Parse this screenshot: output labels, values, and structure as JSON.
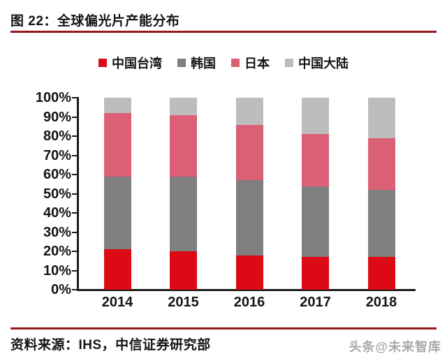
{
  "page": {
    "title": "图 22：全球偏光片产能分布",
    "source": "资料来源：IHS，中信证券研究部",
    "watermark": "头条@未来智库"
  },
  "colors": {
    "accent_rule": "#97181B",
    "axis": "#1A1A1A",
    "series_taiwan": "#DC0A14",
    "series_korea": "#7F7F7F",
    "series_japan": "#DC6075",
    "series_mainland": "#BDBDBD"
  },
  "chart_data": {
    "type": "bar",
    "stacked": true,
    "title": "全球偏光片产能分布",
    "categories": [
      "2014",
      "2015",
      "2016",
      "2017",
      "2018"
    ],
    "series": [
      {
        "name": "中国台湾",
        "color": "#DC0A14",
        "values": [
          21,
          20,
          18,
          17,
          17
        ]
      },
      {
        "name": "韩国",
        "color": "#7F7F7F",
        "values": [
          38,
          39,
          39,
          37,
          35
        ]
      },
      {
        "name": "日本",
        "color": "#DC6075",
        "values": [
          33,
          32,
          29,
          27,
          27
        ]
      },
      {
        "name": "中国大陆",
        "color": "#BDBDBD",
        "values": [
          8,
          9,
          14,
          19,
          21
        ]
      }
    ],
    "xlabel": "",
    "ylabel": "",
    "ylim": [
      0,
      100
    ],
    "y_tick_step": 10,
    "y_tick_labels": [
      "0%",
      "10%",
      "20%",
      "30%",
      "40%",
      "50%",
      "60%",
      "70%",
      "80%",
      "90%",
      "100%"
    ],
    "legend_position": "top",
    "grid": false
  }
}
